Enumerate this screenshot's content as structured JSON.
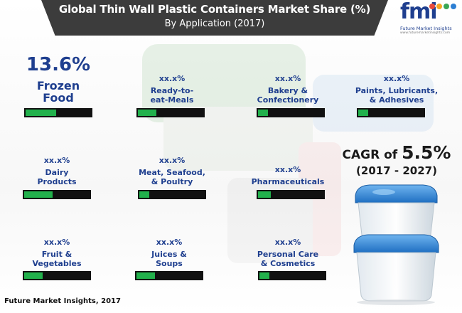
{
  "header": {
    "title": "Global Thin Wall Plastic Containers Market Share (%)",
    "subtitle": "By Application (2017)"
  },
  "logo": {
    "text": "fmi",
    "caption": "Future Market Insights",
    "url": "www.futuremarketinsights.com",
    "dot_colors": [
      "#e84a3c",
      "#f6a623",
      "#3aa655",
      "#2d7fd3"
    ]
  },
  "chart_data": {
    "type": "bar",
    "title": "Global Thin Wall Plastic Containers Market Share (%)",
    "subtitle": "By Application (2017)",
    "categories": [
      "Frozen Food",
      "Ready-to-eat-Meals",
      "Bakery & Confectionery",
      "Paints, Lubricants, & Adhesives",
      "Dairy Products",
      "Meat, Seafood, & Poultry",
      "Pharmaceuticals",
      "Fruit & Vegetables",
      "Juices & Soups",
      "Personal Care & Cosmetics"
    ],
    "values": [
      13.6,
      null,
      null,
      null,
      null,
      null,
      null,
      null,
      null,
      null
    ],
    "segments": [
      {
        "value": "13.6%",
        "label": "Frozen\nFood",
        "fill_fraction": 0.47,
        "featured": true
      },
      {
        "value": "xx.x%",
        "label": "Ready-to-\neat-Meals",
        "fill_fraction": 0.28
      },
      {
        "value": "xx.x%",
        "label": "Bakery &\nConfectionery",
        "fill_fraction": 0.15
      },
      {
        "value": "xx.x%",
        "label": "Paints, Lubricants,\n& Adhesives",
        "fill_fraction": 0.15
      },
      {
        "value": "xx.x%",
        "label": "Dairy\nProducts",
        "fill_fraction": 0.43
      },
      {
        "value": "xx.x%",
        "label": "Meat, Seafood,\n& Poultry",
        "fill_fraction": 0.15
      },
      {
        "value": "xx.x%",
        "label": "Pharmaceuticals",
        "fill_fraction": 0.2
      },
      {
        "value": "xx.x%",
        "label": "Fruit &\nVegetables",
        "fill_fraction": 0.28
      },
      {
        "value": "xx.x%",
        "label": "Juices &\nSoups",
        "fill_fraction": 0.28
      },
      {
        "value": "xx.x%",
        "label": "Personal Care\n& Cosmetics",
        "fill_fraction": 0.15
      }
    ],
    "bar_colors": {
      "fill": "#22b14c",
      "track": "#111111"
    },
    "text_color": "#1f3f8f"
  },
  "cagr": {
    "prefix": "CAGR of ",
    "value": "5.5%",
    "period": "(2017 - 2027)"
  },
  "source": "Future Market Insights, 2017"
}
